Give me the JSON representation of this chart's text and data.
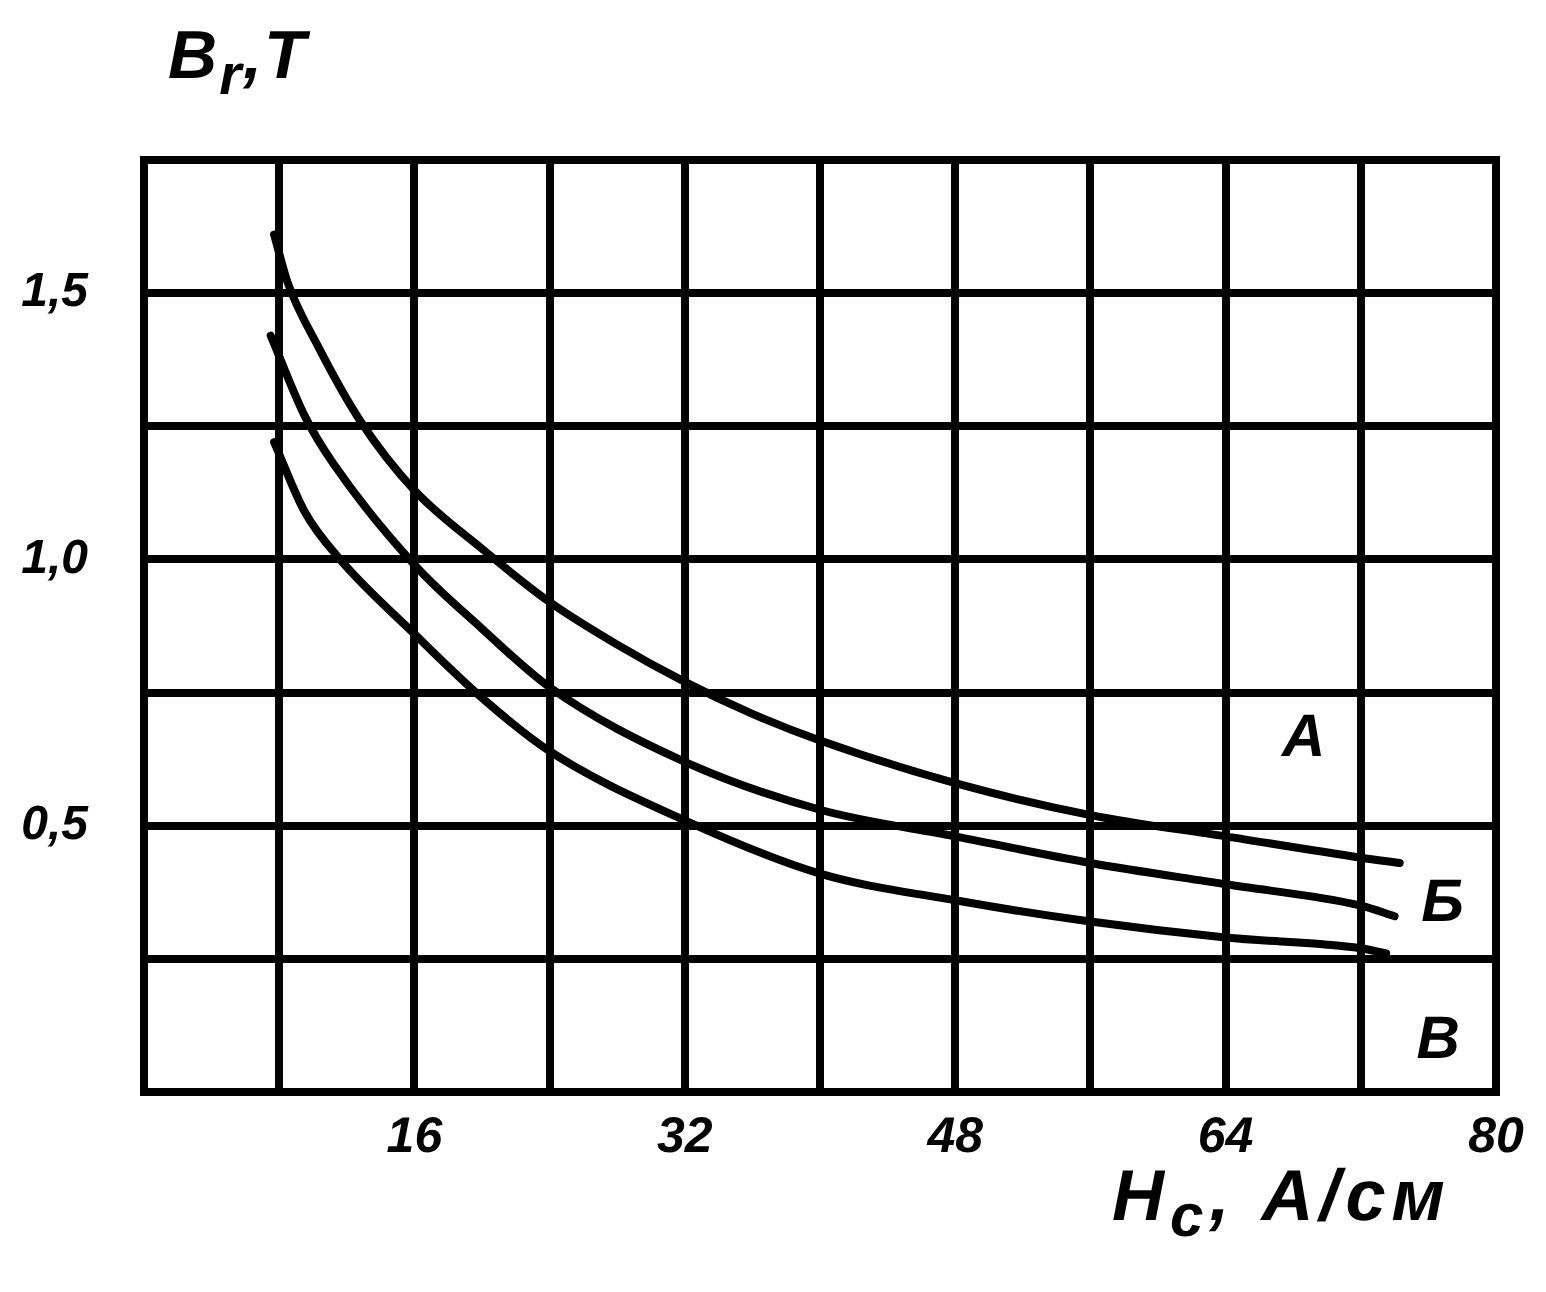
{
  "chart_data": {
    "type": "line",
    "xlabel": "H$_{c}$, А/см",
    "ylabel": "B$_{r}$,T",
    "xlim": [
      0,
      80
    ],
    "ylim": [
      0,
      1.75
    ],
    "xticks": [
      {
        "value": 8,
        "label": null
      },
      16,
      {
        "value": 24,
        "label": null
      },
      32,
      {
        "value": 40,
        "label": null
      },
      48,
      {
        "value": 56,
        "label": null
      },
      64,
      {
        "value": 72,
        "label": null
      },
      80
    ],
    "yticks": [
      {
        "value": 0.25,
        "label": null
      },
      {
        "value": 0.5,
        "label": "0,5"
      },
      {
        "value": 0.75,
        "label": null
      },
      {
        "value": 1,
        "label": "1,0"
      },
      {
        "value": 1.25,
        "label": null
      },
      {
        "value": 1.5,
        "label": "1,5"
      }
    ],
    "grid": true,
    "legend": false,
    "marker": "none",
    "line_style": "solid",
    "series": [
      {
        "name": "А",
        "color": "#000000",
        "x": [
          7.7,
          8.5,
          10.3,
          12.8,
          16,
          20,
          24,
          28,
          32,
          36,
          40,
          48,
          56,
          64,
          72,
          74.3
        ],
        "values": [
          1.61,
          1.52,
          1.4,
          1.26,
          1.13,
          1.02,
          0.92,
          0.84,
          0.77,
          0.71,
          0.66,
          0.58,
          0.52,
          0.48,
          0.44,
          0.43
        ]
      },
      {
        "name": "Б",
        "color": "#000000",
        "x": [
          7.5,
          9.5,
          11.2,
          16,
          20,
          24,
          32,
          40,
          48,
          56,
          64,
          72,
          74
        ],
        "values": [
          1.42,
          1.27,
          1.18,
          0.99,
          0.87,
          0.76,
          0.62,
          0.53,
          0.48,
          0.43,
          0.39,
          0.35,
          0.33
        ]
      },
      {
        "name": "В",
        "color": "#000000",
        "x": [
          7.7,
          9.5,
          11.6,
          16,
          20,
          24,
          32,
          40,
          48,
          56,
          64,
          72,
          73.5
        ],
        "values": [
          1.22,
          1.09,
          1,
          0.86,
          0.74,
          0.64,
          0.51,
          0.41,
          0.36,
          0.32,
          0.29,
          0.27,
          0.26
        ]
      }
    ]
  }
}
